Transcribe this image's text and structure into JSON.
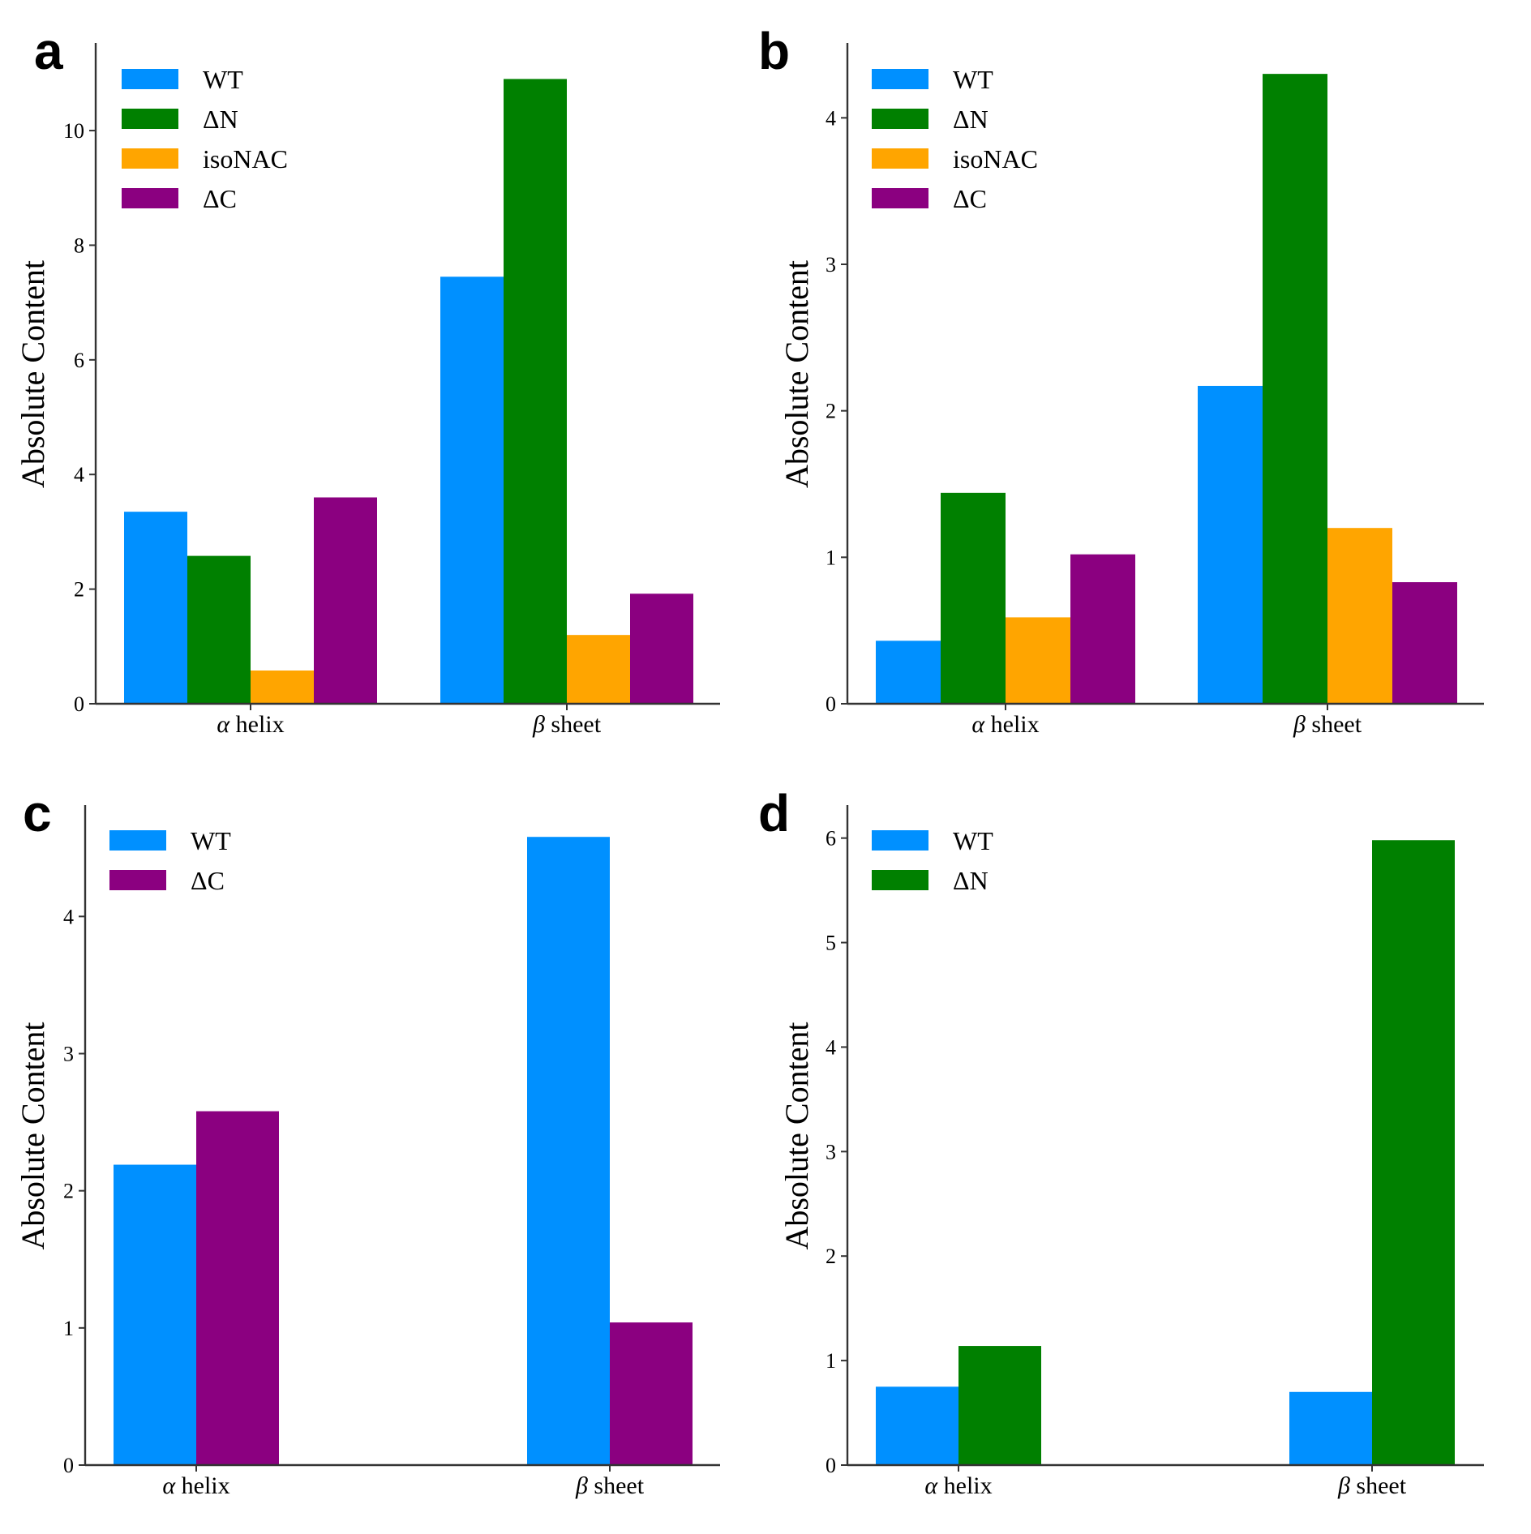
{
  "chart_data": [
    {
      "type": "bar",
      "panel_label": "a",
      "categories": [
        "α helix",
        "β sheet"
      ],
      "series": [
        {
          "name": "WT",
          "values": [
            3.35,
            7.45
          ]
        },
        {
          "name": "ΔN",
          "values": [
            2.58,
            10.9
          ]
        },
        {
          "name": "isoNAC",
          "values": [
            0.58,
            1.2
          ]
        },
        {
          "name": "ΔC",
          "values": [
            3.6,
            1.92
          ]
        }
      ],
      "ylabel": "Absolute Content",
      "ylim": [
        0,
        11.5
      ],
      "yticks": [
        0,
        2,
        4,
        6,
        8,
        10
      ],
      "legend_position": "top-left",
      "grid": false
    },
    {
      "type": "bar",
      "panel_label": "b",
      "categories": [
        "α helix",
        "β sheet"
      ],
      "series": [
        {
          "name": "WT",
          "values": [
            0.43,
            2.17
          ]
        },
        {
          "name": "ΔN",
          "values": [
            1.44,
            4.3
          ]
        },
        {
          "name": "isoNAC",
          "values": [
            0.59,
            1.2
          ]
        },
        {
          "name": "ΔC",
          "values": [
            1.02,
            0.83
          ]
        }
      ],
      "ylabel": "Absolute Content",
      "ylim": [
        0,
        4.5
      ],
      "yticks": [
        0,
        1,
        2,
        3,
        4
      ],
      "legend_position": "top-left",
      "grid": false
    },
    {
      "type": "bar",
      "panel_label": "c",
      "categories": [
        "α helix",
        "β sheet"
      ],
      "series": [
        {
          "name": "WT",
          "values": [
            2.19,
            4.58
          ]
        },
        {
          "name": "ΔC",
          "values": [
            2.58,
            1.04
          ]
        }
      ],
      "ylabel": "Absolute Content",
      "ylim": [
        0,
        4.8
      ],
      "yticks": [
        0,
        1,
        2,
        3,
        4
      ],
      "legend_position": "top-left",
      "grid": false
    },
    {
      "type": "bar",
      "panel_label": "d",
      "categories": [
        "α helix",
        "β sheet"
      ],
      "series": [
        {
          "name": "WT",
          "values": [
            0.75,
            0.7
          ]
        },
        {
          "name": "ΔN",
          "values": [
            1.14,
            5.98
          ]
        }
      ],
      "ylabel": "Absolute Content",
      "ylim": [
        0,
        6.3
      ],
      "yticks": [
        0,
        1,
        2,
        3,
        4,
        5,
        6
      ],
      "legend_position": "top-left",
      "grid": false
    }
  ],
  "colors": {
    "WT": "#0090ff",
    "ΔN": "#008000",
    "isoNAC": "#ffa500",
    "ΔC": "#8b0080"
  }
}
